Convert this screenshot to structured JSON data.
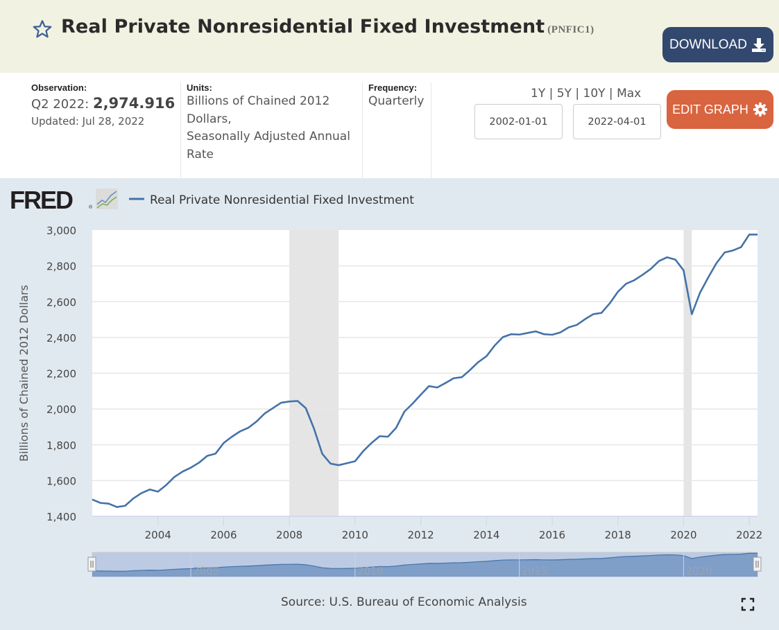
{
  "header": {
    "title": "Real Private Nonresidential Fixed Investment",
    "series_id": "(PNFIC1)",
    "download_label": "DOWNLOAD",
    "icons": {
      "favorite": "star-outline-icon",
      "download": "download-icon"
    }
  },
  "meta": {
    "observation_label": "Observation:",
    "observation_period": "Q2 2022:",
    "observation_value": "2,974.916",
    "updated": "Updated: Jul 28, 2022",
    "units_label": "Units:",
    "units_lines": [
      "Billions of Chained 2012",
      "Dollars,",
      "Seasonally Adjusted Annual",
      "Rate"
    ],
    "frequency_label": "Frequency:",
    "frequency_value": "Quarterly"
  },
  "controls": {
    "ranges": [
      "1Y",
      "5Y",
      "10Y",
      "Max"
    ],
    "range_separator": " | ",
    "start_date": "2002-01-01",
    "end_date": "2022-04-01",
    "edit_label": "EDIT GRAPH",
    "edit_icon": "gear-icon"
  },
  "colors": {
    "line": "#4472a8",
    "recession": "#e5e5e5",
    "download_btn": "#33486e",
    "edit_btn": "#d96440",
    "header_bg": "#f1f2e1",
    "chart_bg": "#e1e9f0"
  },
  "brand": {
    "logo_text": "FRED",
    "logo_icon": "fred-chart-icon"
  },
  "chart_data": {
    "type": "line",
    "title": "",
    "legend": [
      {
        "name": "Real Private Nonresidential Fixed Investment",
        "color": "#4472a8"
      }
    ],
    "legend_position": "top-left",
    "xlabel": "",
    "ylabel": "Billions of Chained 2012 Dollars",
    "ylim": [
      1400,
      3000
    ],
    "yticks": [
      1400,
      1600,
      1800,
      2000,
      2200,
      2400,
      2600,
      2800,
      3000
    ],
    "ytick_labels": [
      "1,400",
      "1,600",
      "1,800",
      "2,000",
      "2,200",
      "2,400",
      "2,600",
      "2,800",
      "3,000"
    ],
    "xlim": [
      2002.0,
      2022.25
    ],
    "xticks": [
      2004,
      2006,
      2008,
      2010,
      2012,
      2014,
      2016,
      2018,
      2020,
      2022
    ],
    "xtick_labels": [
      "2004",
      "2006",
      "2008",
      "2010",
      "2012",
      "2014",
      "2016",
      "2018",
      "2020",
      "2022"
    ],
    "grid": true,
    "recessions": [
      [
        2008.0,
        2009.5
      ],
      [
        2020.0,
        2020.25
      ]
    ],
    "x_start": 2002.0,
    "x_step": 0.25,
    "series": [
      {
        "name": "Real Private Nonresidential Fixed Investment",
        "values": [
          1494,
          1475,
          1471,
          1452,
          1459,
          1500,
          1530,
          1550,
          1538,
          1575,
          1620,
          1650,
          1672,
          1700,
          1738,
          1750,
          1810,
          1845,
          1875,
          1895,
          1930,
          1975,
          2005,
          2035,
          2042,
          2045,
          2005,
          1890,
          1750,
          1695,
          1686,
          1697,
          1708,
          1765,
          1810,
          1848,
          1845,
          1895,
          1985,
          2030,
          2080,
          2128,
          2120,
          2145,
          2172,
          2178,
          2218,
          2262,
          2295,
          2355,
          2402,
          2418,
          2416,
          2425,
          2434,
          2418,
          2415,
          2428,
          2456,
          2470,
          2502,
          2530,
          2537,
          2590,
          2655,
          2700,
          2720,
          2750,
          2783,
          2827,
          2848,
          2835,
          2775,
          2530,
          2650,
          2735,
          2815,
          2875,
          2886,
          2905,
          2975,
          2975
        ]
      }
    ],
    "navigator": {
      "labels": [
        "2005",
        "2010",
        "2015",
        "2020"
      ]
    },
    "source": "Source: U.S. Bureau of Economic Analysis"
  },
  "footer": {
    "fullscreen_icon": "fullscreen-icon"
  }
}
